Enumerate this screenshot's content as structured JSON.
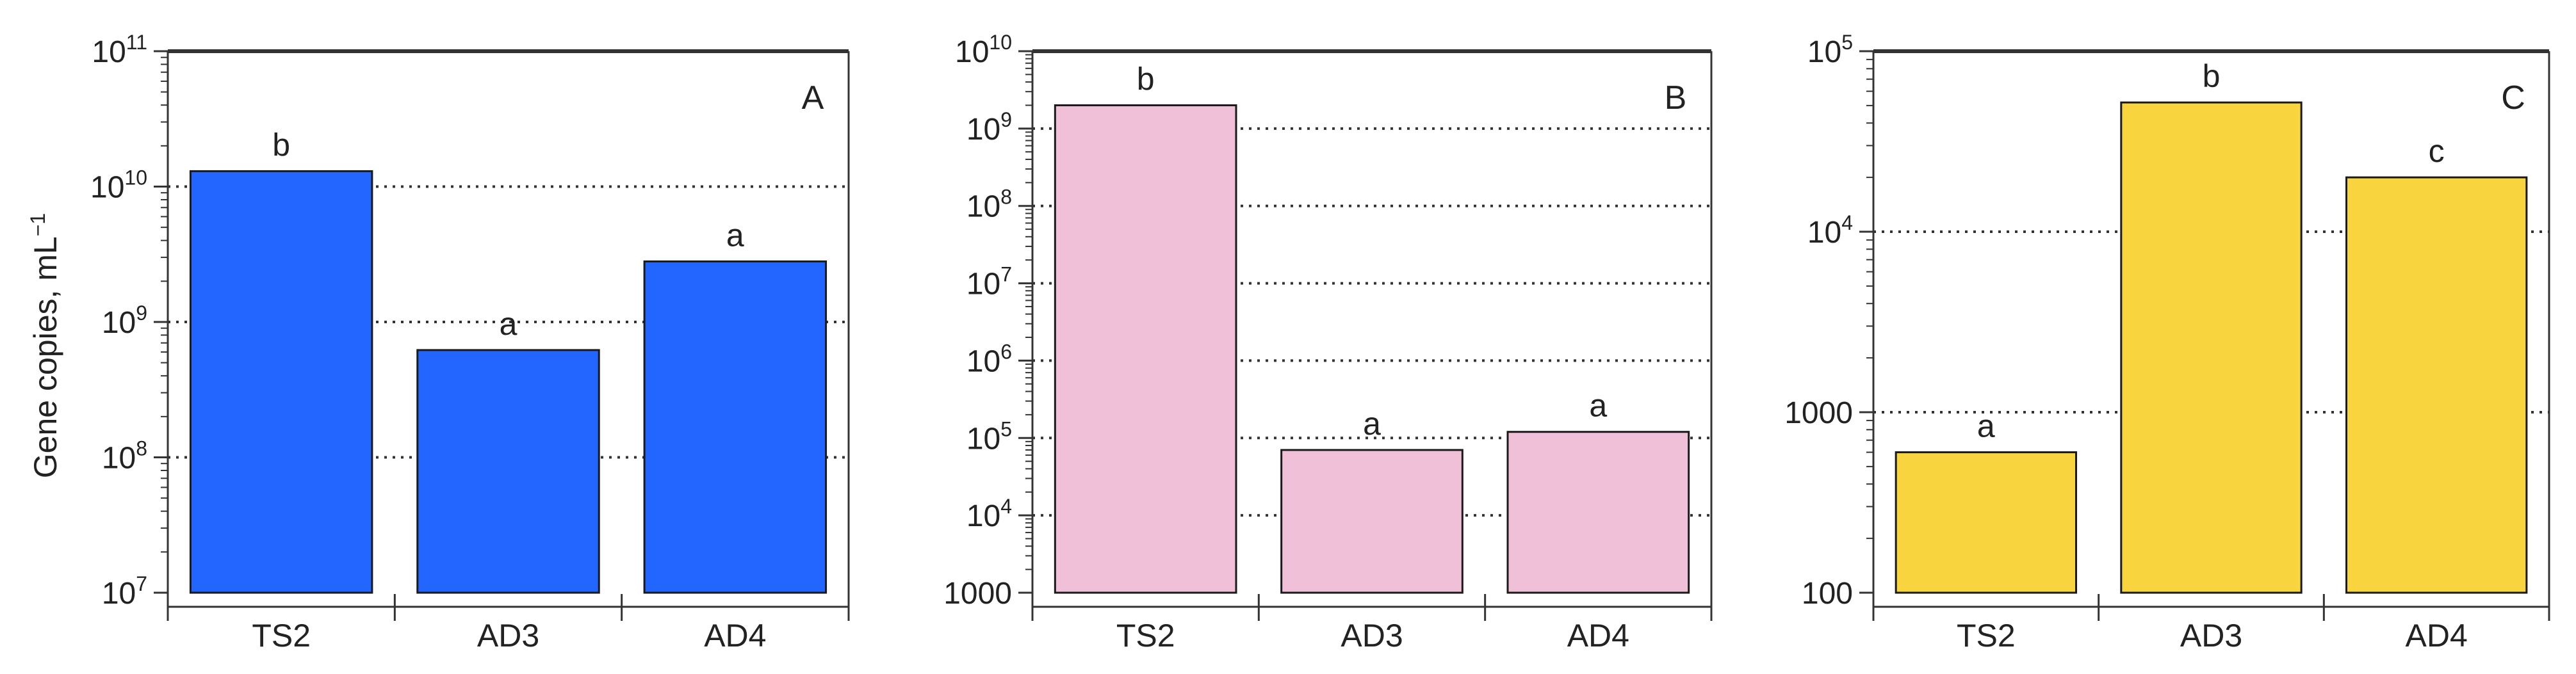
{
  "figure": {
    "ylabel_main": "Gene copies, mL",
    "ylabel_sup": "−1"
  },
  "colors": {
    "axis": "#333333",
    "grid": "#333333",
    "text": "#222222",
    "edge": "#1a1a1a"
  },
  "chart_data": [
    {
      "type": "bar",
      "panel_label": "A",
      "ylabel": "Gene copies, mL−1",
      "yscale": "log",
      "ylim": [
        10000000,
        100000000000
      ],
      "grid": "dotted-horizontal",
      "categories": [
        "TS2",
        "AD3",
        "AD4"
      ],
      "values": [
        13000000000,
        620000000,
        2800000000
      ],
      "letters": [
        "b",
        "a",
        "a"
      ],
      "color": "#2266ff",
      "ytick_labels": [
        {
          "value": 10000000,
          "base": "10",
          "exp": "7"
        },
        {
          "value": 100000000,
          "base": "10",
          "exp": "8"
        },
        {
          "value": 1000000000,
          "base": "10",
          "exp": "9"
        },
        {
          "value": 10000000000,
          "base": "10",
          "exp": "10"
        },
        {
          "value": 100000000000,
          "base": "10",
          "exp": "11"
        }
      ]
    },
    {
      "type": "bar",
      "panel_label": "B",
      "yscale": "log",
      "ylim": [
        1000,
        10000000000
      ],
      "grid": "dotted-horizontal",
      "categories": [
        "TS2",
        "AD3",
        "AD4"
      ],
      "values": [
        2000000000,
        70000,
        120000
      ],
      "letters": [
        "b",
        "a",
        "a"
      ],
      "color": "#f0bfd8",
      "ytick_labels": [
        {
          "value": 1000,
          "base": "1000",
          "exp": ""
        },
        {
          "value": 10000,
          "base": "10",
          "exp": "4"
        },
        {
          "value": 100000,
          "base": "10",
          "exp": "5"
        },
        {
          "value": 1000000,
          "base": "10",
          "exp": "6"
        },
        {
          "value": 10000000,
          "base": "10",
          "exp": "7"
        },
        {
          "value": 100000000,
          "base": "10",
          "exp": "8"
        },
        {
          "value": 1000000000,
          "base": "10",
          "exp": "9"
        },
        {
          "value": 10000000000,
          "base": "10",
          "exp": "10"
        }
      ]
    },
    {
      "type": "bar",
      "panel_label": "C",
      "yscale": "log",
      "ylim": [
        100,
        100000
      ],
      "grid": "dotted-horizontal",
      "categories": [
        "TS2",
        "AD3",
        "AD4"
      ],
      "values": [
        600,
        52000,
        20000
      ],
      "letters": [
        "a",
        "b",
        "c"
      ],
      "color": "#f8d53f",
      "ytick_labels": [
        {
          "value": 100,
          "base": "100",
          "exp": ""
        },
        {
          "value": 1000,
          "base": "1000",
          "exp": ""
        },
        {
          "value": 10000,
          "base": "10",
          "exp": "4"
        },
        {
          "value": 100000,
          "base": "10",
          "exp": "5"
        }
      ]
    }
  ]
}
